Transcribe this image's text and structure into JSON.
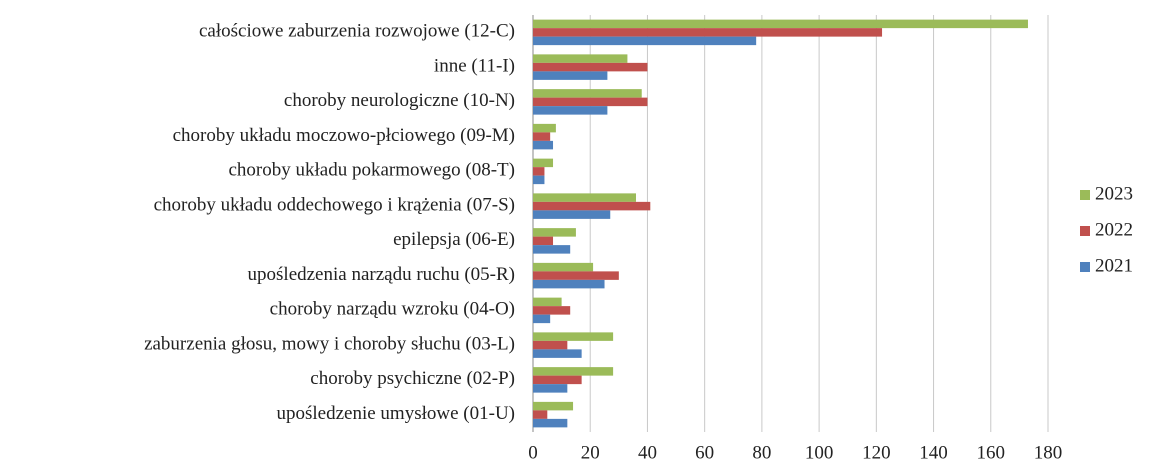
{
  "chart_data": {
    "type": "hbar",
    "categories": [
      "całościowe zaburzenia rozwojowe (12-C)",
      "inne (11-I)",
      "choroby neurologiczne (10-N)",
      "choroby układu moczowo-płciowego (09-M)",
      "choroby układu pokarmowego (08-T)",
      "choroby układu oddechowego i krążenia (07-S)",
      "epilepsja (06-E)",
      "upośledzenia narządu ruchu (05-R)",
      "choroby narządu wzroku (04-O)",
      "zaburzenia głosu, mowy i choroby słuchu (03-L)",
      "choroby psychiczne (02-P)",
      "upośledzenie umysłowe (01-U)"
    ],
    "series": [
      {
        "name": "2023",
        "color": "#9bbb59",
        "values": [
          173,
          33,
          38,
          8,
          7,
          36,
          15,
          21,
          10,
          28,
          28,
          14
        ]
      },
      {
        "name": "2022",
        "color": "#c0504d",
        "values": [
          122,
          40,
          40,
          6,
          4,
          41,
          7,
          30,
          13,
          12,
          17,
          5
        ]
      },
      {
        "name": "2021",
        "color": "#4f81bd",
        "values": [
          78,
          26,
          26,
          7,
          4,
          27,
          13,
          25,
          6,
          17,
          12,
          12
        ]
      }
    ],
    "xlim": [
      0,
      180
    ],
    "xticks": [
      0,
      20,
      40,
      60,
      80,
      100,
      120,
      140,
      160,
      180
    ],
    "grid": true,
    "legend": "right"
  }
}
